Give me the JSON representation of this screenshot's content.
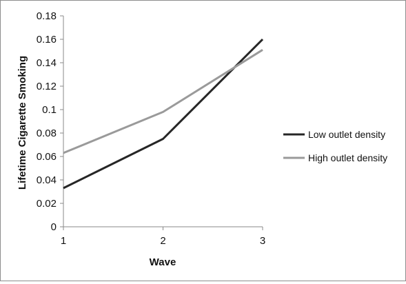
{
  "chart_data": {
    "type": "line",
    "title": "",
    "xlabel": "Wave",
    "ylabel": "Lifetime Cigarette Smoking",
    "x": [
      1,
      2,
      3
    ],
    "xlim": [
      1,
      3
    ],
    "ylim": [
      0,
      0.18
    ],
    "y_ticks": [
      "0",
      "0.02",
      "0.04",
      "0.06",
      "0.08",
      "0.1",
      "0.12",
      "0.14",
      "0.16",
      "0.18"
    ],
    "x_ticks": [
      "1",
      "2",
      "3"
    ],
    "grid": false,
    "legend_position": "right",
    "series": [
      {
        "name": "Low outlet density",
        "color": "#262626",
        "values": [
          0.033,
          0.075,
          0.16
        ]
      },
      {
        "name": "High outlet density",
        "color": "#9a9a9a",
        "values": [
          0.063,
          0.098,
          0.151
        ]
      }
    ]
  }
}
